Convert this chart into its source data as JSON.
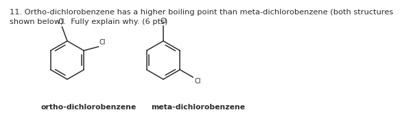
{
  "title_text": "11. Ortho-dichlorobenzene has a higher boiling point than meta-dichlorobenzene (both structures\nshown below).  Fully explain why. (6 pts)",
  "label_ortho": "ortho-dichlorobenzene",
  "label_meta": "meta-dichlorobenzene",
  "bg_color": "#ffffff",
  "text_color": "#2a2a2a",
  "line_color": "#2a2a2a",
  "font_size_title": 8.2,
  "font_size_label": 7.8,
  "font_size_cl": 7.0
}
